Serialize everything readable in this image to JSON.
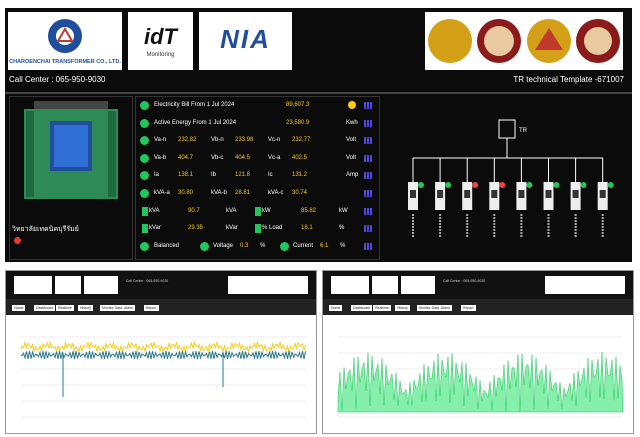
{
  "header": {
    "company": "CHAROENCHAI TRANSFORMER CO., LTD.",
    "brand": "idT",
    "brand_sub": "Monitoring",
    "partner": "NIA",
    "call_center": "Call Center : 065-950-9030",
    "template": "TR technical Template -671007"
  },
  "site": {
    "location": "วิทยาลัยเทคนิคบุรีรัมย์"
  },
  "summary": [
    {
      "label": "Electricity Bill From 1 Jul 2024",
      "value": "89,607.3"
    },
    {
      "label": "Active Energy From 1 Jul 2024",
      "value": "23,580.9",
      "unit": "Kwh"
    }
  ],
  "phase_rows": [
    {
      "cells": [
        {
          "label": "Va-n",
          "value": "232.82"
        },
        {
          "label": "Vb-n",
          "value": "233.98"
        },
        {
          "label": "Vc-n",
          "value": "232.77"
        }
      ],
      "unit": "Volt"
    },
    {
      "cells": [
        {
          "label": "Va-b",
          "value": "404.7"
        },
        {
          "label": "Vb-c",
          "value": "404.5"
        },
        {
          "label": "Vc-a",
          "value": "402.5"
        }
      ],
      "unit": "Volt"
    },
    {
      "cells": [
        {
          "label": "Ia",
          "value": "138.1"
        },
        {
          "label": "Ib",
          "value": "121.8"
        },
        {
          "label": "Ic",
          "value": "131.2"
        }
      ],
      "unit": "Amp"
    },
    {
      "cells": [
        {
          "label": "kVA-a",
          "value": "30.80"
        },
        {
          "label": "kVA-b",
          "value": "28.81"
        },
        {
          "label": "kVA-c",
          "value": "30.74"
        }
      ]
    }
  ],
  "power_rows": [
    [
      {
        "label": "kVA",
        "value": "90.7",
        "unit": "kVA"
      },
      {
        "label": "kW",
        "value": "85.82",
        "unit": "kW"
      }
    ],
    [
      {
        "label": "kVar",
        "value": "29.35",
        "unit": "kVar"
      },
      {
        "label": "% Load",
        "value": "18.1",
        "unit": "%"
      }
    ]
  ],
  "balance": {
    "label": "Balanced",
    "items": [
      {
        "label": "Voltage",
        "value": "0.3",
        "unit": "%"
      },
      {
        "label": "Current",
        "value": "6.1",
        "unit": "%"
      }
    ]
  },
  "diagram": {
    "transformer": "TR"
  },
  "screens": {
    "tabs": [
      "Home",
      "Dashboard",
      "Realtime",
      "History",
      "Monitor Data",
      "Alarm",
      "Report"
    ]
  }
}
